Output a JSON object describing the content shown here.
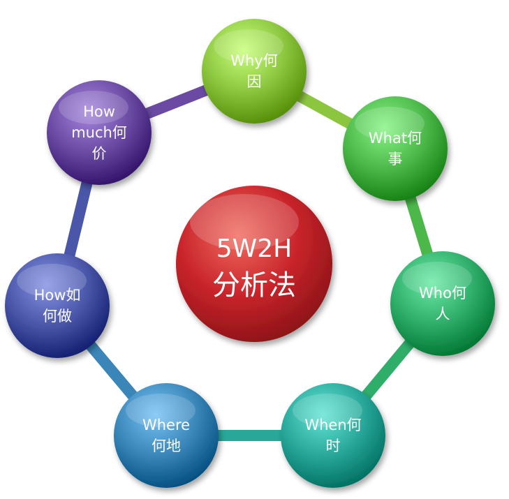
{
  "center": {
    "line1": "5W2H",
    "line2": "分析法",
    "color": "#c8242a"
  },
  "nodes": [
    {
      "id": "why",
      "lines": [
        "Why何",
        "因"
      ],
      "color": "#8cc63f"
    },
    {
      "id": "what",
      "lines": [
        "What何",
        "事"
      ],
      "color": "#4cb84a"
    },
    {
      "id": "who",
      "lines": [
        "Who何",
        "人"
      ],
      "color": "#2fae6a"
    },
    {
      "id": "when",
      "lines": [
        "When何",
        "时"
      ],
      "color": "#29a89a"
    },
    {
      "id": "where",
      "lines": [
        "Where",
        "何地"
      ],
      "color": "#3a86b8"
    },
    {
      "id": "how",
      "lines": [
        "How如",
        "何做"
      ],
      "color": "#4a56a8"
    },
    {
      "id": "how-much",
      "lines": [
        "How",
        "much何",
        "价"
      ],
      "color": "#6a4aa2"
    }
  ]
}
